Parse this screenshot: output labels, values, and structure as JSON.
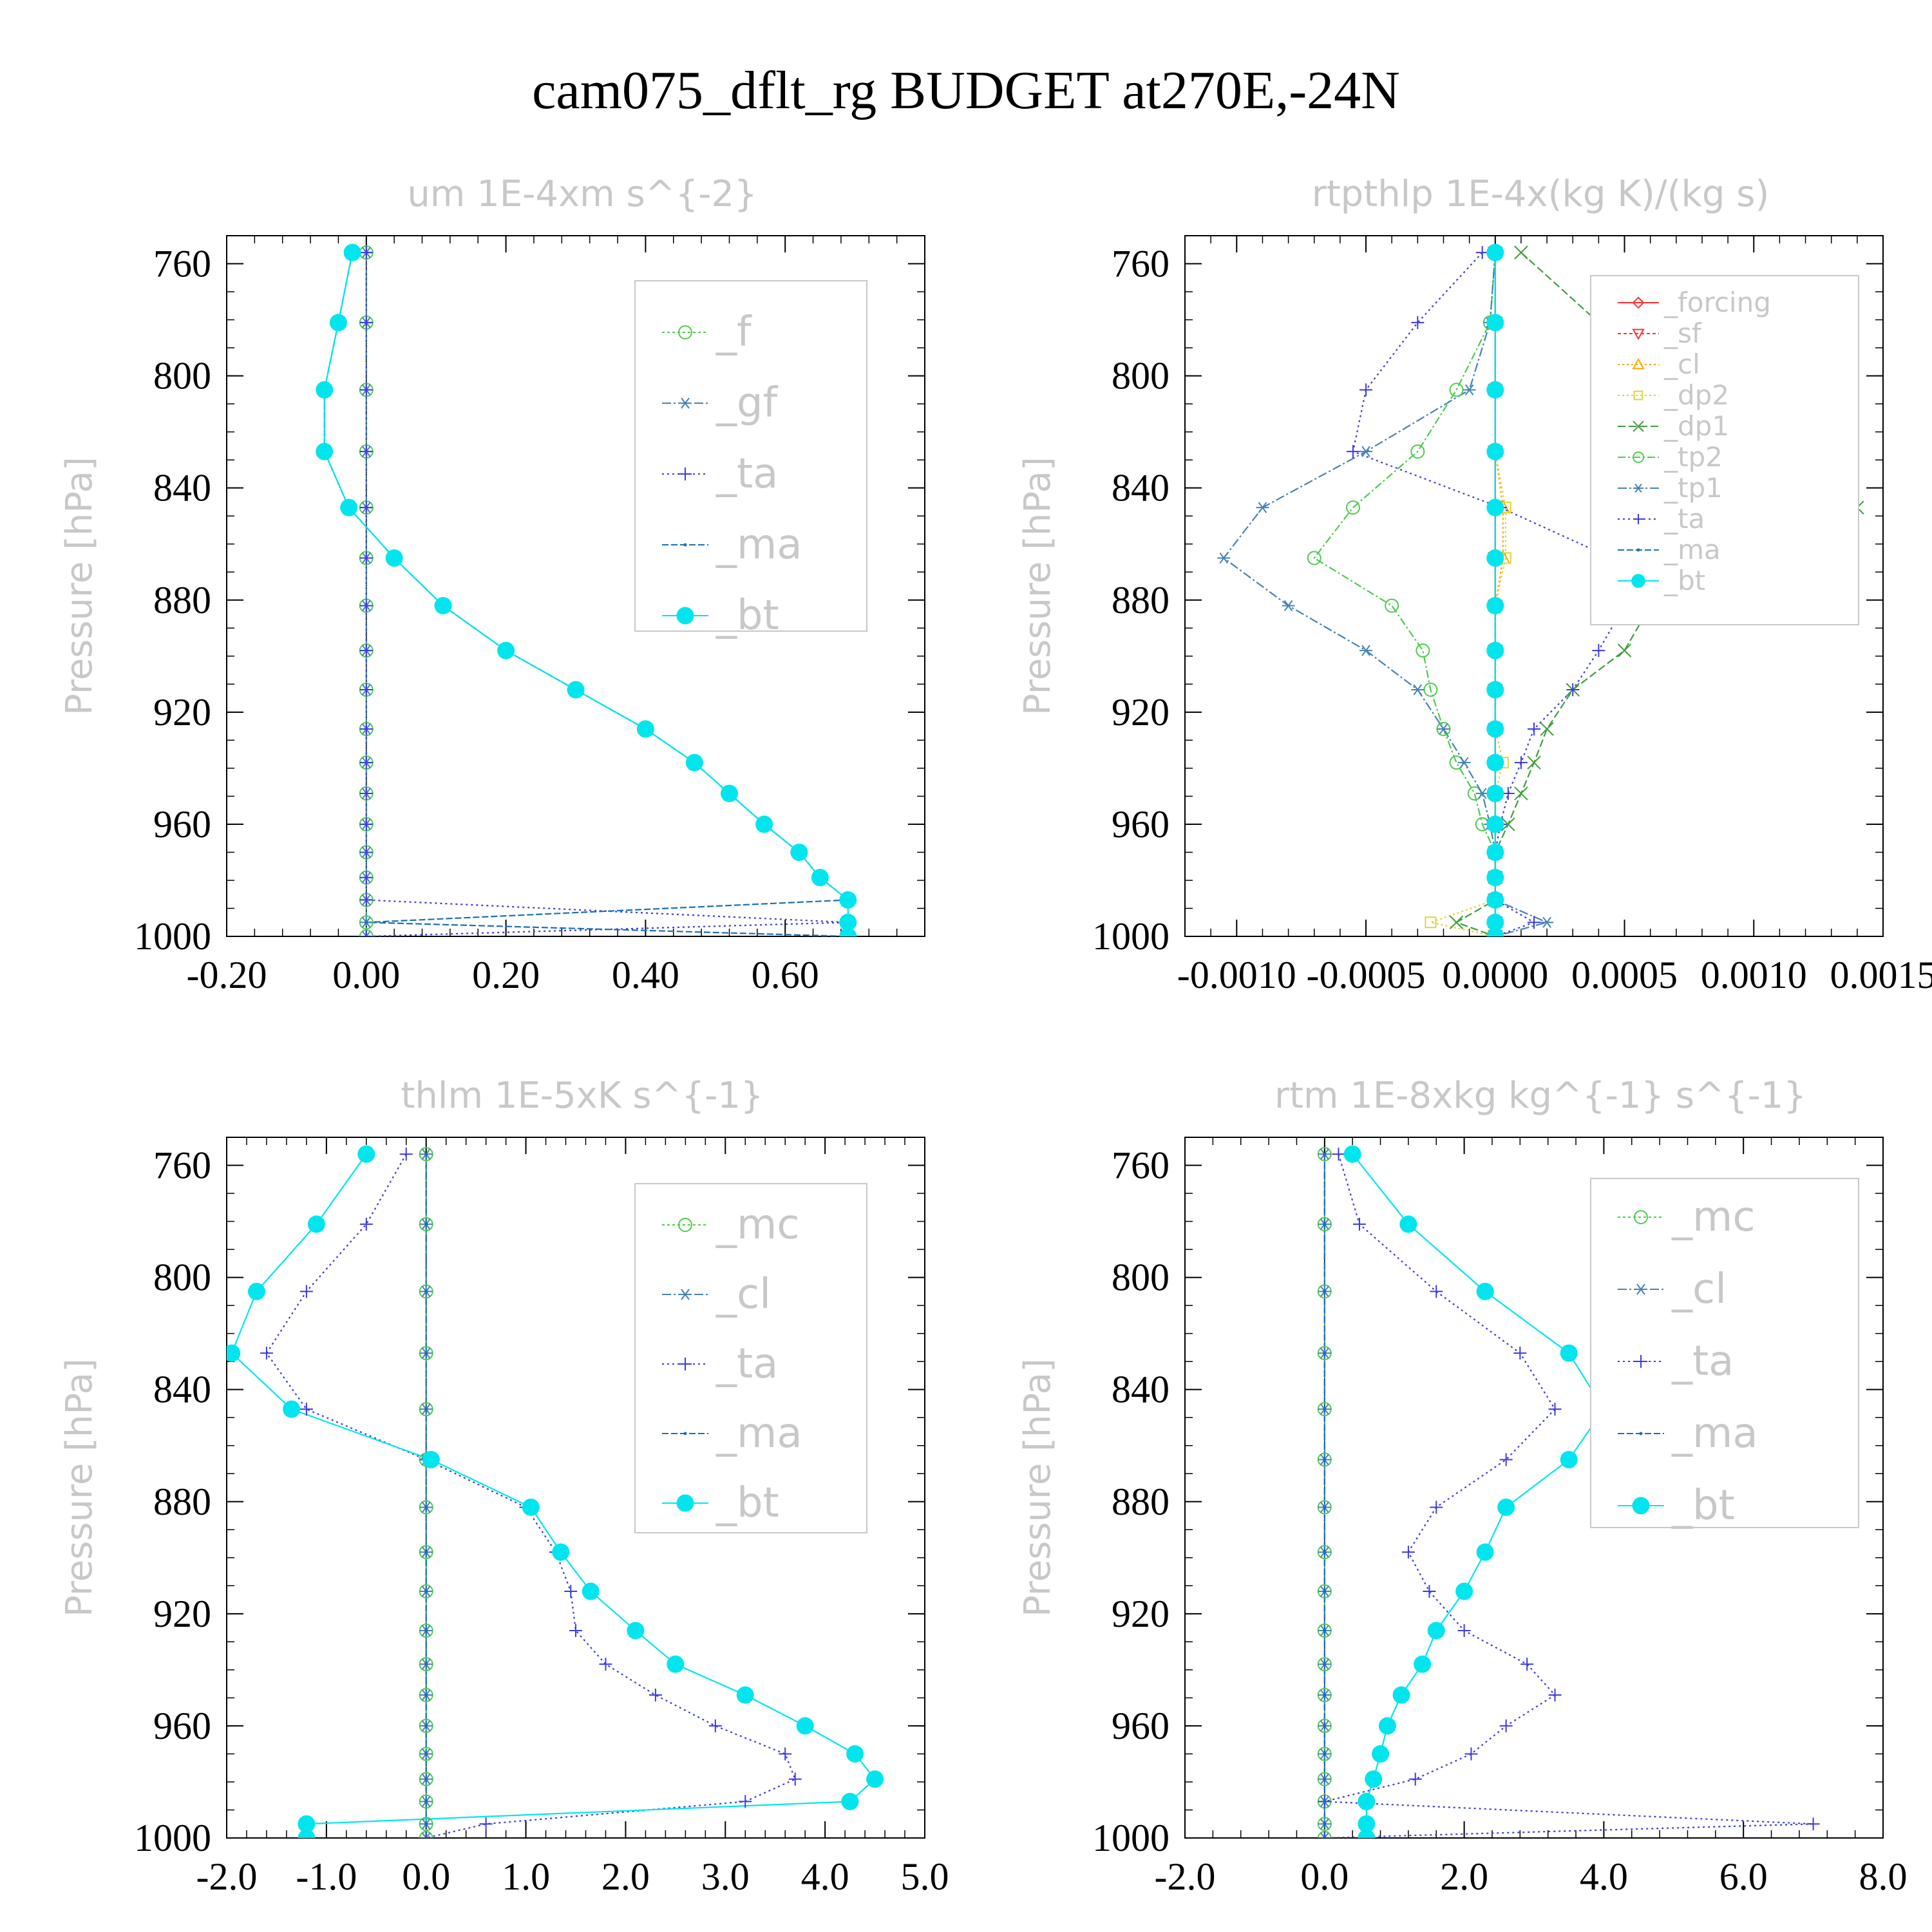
{
  "title": "cam075_dflt_rg  BUDGET at270E,-24N",
  "colors": {
    "green": "#4ccd4c",
    "steel": "#4682b4",
    "blue": "#3a3ae6",
    "cyan": "#00e5ee",
    "red": "#ff3030",
    "orange": "#ffa500",
    "yellow": "#e6d23c",
    "olive": "#3e9e3e",
    "gray_text": "#c8c8c8",
    "axis": "#000000"
  },
  "chart_data": [
    {
      "type": "line",
      "title": "um  1E-4xm s^{-2}",
      "ylabel": "Pressure [hPa]",
      "xlim": [
        -0.2,
        0.8
      ],
      "ylim": [
        1000,
        750
      ],
      "xticks": [
        -0.2,
        0,
        0.2,
        0.4,
        0.6
      ],
      "xticklabels": [
        "-0.20",
        "0.00",
        "0.20",
        "0.40",
        "0.60"
      ],
      "yticks": [
        760,
        800,
        840,
        880,
        920,
        960,
        1000
      ],
      "yticklabels": [
        "760",
        "800",
        "840",
        "880",
        "920",
        "960",
        "1000"
      ],
      "pressure": [
        756,
        781,
        805,
        827,
        847,
        865,
        882,
        898,
        912,
        926,
        938,
        949,
        960,
        970,
        979,
        987,
        995,
        1000
      ],
      "legend_placement": "top-right",
      "series": [
        {
          "name": "_f",
          "marker": "circle-open",
          "color": "#4ccd4c",
          "dash": "4,4",
          "values": [
            0,
            0,
            0,
            0,
            0,
            0,
            0,
            0,
            0,
            0,
            0,
            0,
            0,
            0,
            0,
            0,
            0,
            0
          ]
        },
        {
          "name": "_gf",
          "marker": "asterisk",
          "color": "#4682b4",
          "dash": "14,4,3,4",
          "values": [
            0,
            0,
            0,
            0,
            0,
            0,
            0,
            0,
            0,
            0,
            0,
            0,
            0,
            0,
            0,
            0,
            0,
            0
          ]
        },
        {
          "name": "_ta",
          "marker": "plus",
          "color": "#3a3ae6",
          "dash": "3,5",
          "values": [
            0,
            0,
            0,
            0,
            0,
            0,
            0,
            0,
            0,
            0,
            0,
            0,
            0,
            0,
            0,
            0,
            0.69,
            0
          ]
        },
        {
          "name": "_ma",
          "marker": "dot",
          "color": "#1a6fb4",
          "dash": "10,4",
          "values": [
            -0.02,
            -0.04,
            -0.06,
            -0.06,
            -0.025,
            0.04,
            0.11,
            0.2,
            0.3,
            0.4,
            0.47,
            0.52,
            0.57,
            0.62,
            0.65,
            0.69,
            0,
            0.69
          ]
        },
        {
          "name": "_bt",
          "marker": "filled-circle",
          "color": "#00e5ee",
          "dash": "",
          "values": [
            -0.02,
            -0.04,
            -0.06,
            -0.06,
            -0.025,
            0.04,
            0.11,
            0.2,
            0.3,
            0.4,
            0.47,
            0.52,
            0.57,
            0.62,
            0.65,
            0.69,
            0.69,
            0.69
          ]
        }
      ]
    },
    {
      "type": "line",
      "title": "rtpthlp  1E-4x(kg K)/(kg s)",
      "ylabel": "Pressure [hPa]",
      "xlim": [
        -0.0012,
        0.0015
      ],
      "ylim": [
        1000,
        750
      ],
      "xticks": [
        -0.001,
        -0.0005,
        0,
        0.0005,
        0.001,
        0.0015
      ],
      "xticklabels": [
        "-0.0010",
        "-0.0005",
        "0.0000",
        "0.0005",
        "0.0010",
        "0.0015"
      ],
      "yticks": [
        760,
        800,
        840,
        880,
        920,
        960,
        1000
      ],
      "yticklabels": [
        "760",
        "800",
        "840",
        "880",
        "920",
        "960",
        "1000"
      ],
      "pressure": [
        756,
        781,
        805,
        827,
        847,
        865,
        882,
        898,
        912,
        926,
        938,
        949,
        960,
        970,
        979,
        987,
        995,
        1000
      ],
      "legend_placement": "top-right",
      "series": [
        {
          "name": "_forcing",
          "marker": "diamond",
          "color": "#ff3030",
          "dash": "",
          "values": [
            0,
            0,
            0,
            0,
            0,
            0,
            0,
            0,
            0,
            0,
            0,
            0,
            0,
            0,
            0,
            0,
            0,
            0
          ]
        },
        {
          "name": "_sf",
          "marker": "triangle-down",
          "color": "#ff3030",
          "dash": "5,4",
          "values": [
            0,
            0,
            0,
            0,
            0,
            0,
            0,
            0,
            0,
            0,
            0,
            0,
            0,
            0,
            0,
            0,
            0,
            0
          ]
        },
        {
          "name": "_cl",
          "marker": "triangle",
          "color": "#ffa500",
          "dash": "3,4",
          "values": [
            0,
            0,
            0,
            0,
            3e-05,
            3e-05,
            0,
            0,
            0,
            0,
            0,
            0,
            0,
            0,
            0,
            0,
            0,
            0
          ]
        },
        {
          "name": "_dp2",
          "marker": "square",
          "color": "#e6d23c",
          "dash": "3,4",
          "values": [
            0,
            0,
            0,
            0,
            4e-05,
            4e-05,
            0,
            0,
            0,
            0,
            3e-05,
            0,
            0,
            0,
            0,
            0,
            -0.00025,
            0
          ]
        },
        {
          "name": "_dp1",
          "marker": "cross",
          "color": "#3e9e3e",
          "dash": "12,5",
          "values": [
            0.0001,
            0.0004,
            0.0007,
            0.0012,
            0.0014,
            0.0011,
            0.0006,
            0.0005,
            0.0003,
            0.0002,
            0.00015,
            0.0001,
            5e-05,
            0,
            0,
            0,
            -0.00015,
            0
          ]
        },
        {
          "name": "_tp2",
          "marker": "circle-open",
          "color": "#4ccd4c",
          "dash": "12,4,3,4",
          "values": [
            0,
            -2e-05,
            -0.00015,
            -0.0003,
            -0.00055,
            -0.0007,
            -0.0004,
            -0.00028,
            -0.00025,
            -0.0002,
            -0.00015,
            -8e-05,
            -5e-05,
            0,
            0,
            0,
            0,
            0
          ]
        },
        {
          "name": "_tp1",
          "marker": "asterisk",
          "color": "#4682b4",
          "dash": "14,4,3,4",
          "values": [
            0,
            -2e-05,
            -0.0001,
            -0.0005,
            -0.0009,
            -0.00105,
            -0.0008,
            -0.0005,
            -0.0003,
            -0.0002,
            -0.00012,
            -5e-05,
            -2e-05,
            0,
            0,
            0,
            0.0002,
            0
          ]
        },
        {
          "name": "_ta",
          "marker": "plus",
          "color": "#3a3ae6",
          "dash": "3,5",
          "values": [
            -5e-05,
            -0.0003,
            -0.0005,
            -0.00055,
            2e-05,
            0.00045,
            0.0005,
            0.0004,
            0.0003,
            0.00015,
            0.0001,
            5e-05,
            2e-05,
            0,
            0,
            0,
            0.00015,
            0
          ]
        },
        {
          "name": "_ma",
          "marker": "dot",
          "color": "#1a6fb4",
          "dash": "10,4",
          "values": [
            0,
            0,
            0,
            0,
            0,
            0,
            0,
            0,
            0,
            0,
            0,
            0,
            0,
            0,
            0,
            0,
            0,
            0
          ]
        },
        {
          "name": "_bt",
          "marker": "filled-circle",
          "color": "#00e5ee",
          "dash": "",
          "values": [
            0,
            0,
            0,
            0,
            0,
            0,
            0,
            0,
            0,
            0,
            0,
            0,
            0,
            0,
            0,
            0,
            0,
            0
          ]
        }
      ]
    },
    {
      "type": "line",
      "title": "thlm  1E-5xK s^{-1}",
      "ylabel": "Pressure [hPa]",
      "xlim": [
        -2,
        5
      ],
      "ylim": [
        1000,
        750
      ],
      "xticks": [
        -2,
        -1,
        0,
        1,
        2,
        3,
        4,
        5
      ],
      "xticklabels": [
        "-2.0",
        "-1.0",
        "0.0",
        "1.0",
        "2.0",
        "3.0",
        "4.0",
        "5.0"
      ],
      "yticks": [
        760,
        800,
        840,
        880,
        920,
        960,
        1000
      ],
      "yticklabels": [
        "760",
        "800",
        "840",
        "880",
        "920",
        "960",
        "1000"
      ],
      "pressure": [
        756,
        781,
        805,
        827,
        847,
        865,
        882,
        898,
        912,
        926,
        938,
        949,
        960,
        970,
        979,
        987,
        995,
        1000
      ],
      "legend_placement": "top-right",
      "series": [
        {
          "name": "_mc",
          "marker": "circle-open",
          "color": "#4ccd4c",
          "dash": "4,4",
          "values": [
            0,
            0,
            0,
            0,
            0,
            0,
            0,
            0,
            0,
            0,
            0,
            0,
            0,
            0,
            0,
            0,
            0,
            0
          ]
        },
        {
          "name": "_cl",
          "marker": "asterisk",
          "color": "#4682b4",
          "dash": "14,4,3,4",
          "values": [
            0,
            0,
            0,
            0,
            0,
            0,
            0,
            0,
            0,
            0,
            0,
            0,
            0,
            0,
            0,
            0,
            0,
            0
          ]
        },
        {
          "name": "_ta",
          "marker": "plus",
          "color": "#3a3ae6",
          "dash": "3,5",
          "values": [
            -0.2,
            -0.6,
            -1.2,
            -1.6,
            -1.2,
            0,
            1,
            1.3,
            1.45,
            1.5,
            1.8,
            2.3,
            2.9,
            3.6,
            3.7,
            3.2,
            0.6,
            0
          ]
        },
        {
          "name": "_ma",
          "marker": "dot",
          "color": "#1a6fb4",
          "dash": "10,4",
          "values": [
            0,
            0,
            0,
            0,
            0,
            0,
            0,
            0,
            0,
            0,
            0,
            0,
            0,
            0,
            0,
            0,
            0,
            0
          ]
        },
        {
          "name": "_bt",
          "marker": "filled-circle",
          "color": "#00e5ee",
          "dash": "",
          "values": [
            -0.6,
            -1.1,
            -1.7,
            -1.95,
            -1.35,
            0.05,
            1.05,
            1.35,
            1.65,
            2.1,
            2.5,
            3.2,
            3.8,
            4.3,
            4.5,
            4.25,
            -1.2,
            -1.2
          ]
        }
      ]
    },
    {
      "type": "line",
      "title": "rtm  1E-8xkg kg^{-1} s^{-1}",
      "ylabel": "Pressure [hPa]",
      "xlim": [
        -2,
        8
      ],
      "ylim": [
        1000,
        750
      ],
      "xticks": [
        -2,
        0,
        2,
        4,
        6,
        8
      ],
      "xticklabels": [
        "-2.0",
        "0.0",
        "2.0",
        "4.0",
        "6.0",
        "8.0"
      ],
      "yticks": [
        760,
        800,
        840,
        880,
        920,
        960,
        1000
      ],
      "yticklabels": [
        "760",
        "800",
        "840",
        "880",
        "920",
        "960",
        "1000"
      ],
      "pressure": [
        756,
        781,
        805,
        827,
        847,
        865,
        882,
        898,
        912,
        926,
        938,
        949,
        960,
        970,
        979,
        987,
        995,
        1000
      ],
      "legend_placement": "top-right",
      "series": [
        {
          "name": "_mc",
          "marker": "circle-open",
          "color": "#4ccd4c",
          "dash": "4,4",
          "values": [
            0,
            0,
            0,
            0,
            0,
            0,
            0,
            0,
            0,
            0,
            0,
            0,
            0,
            0,
            0,
            0,
            0,
            0
          ]
        },
        {
          "name": "_cl",
          "marker": "asterisk",
          "color": "#4682b4",
          "dash": "14,4,3,4",
          "values": [
            0,
            0,
            0,
            0,
            0,
            0,
            0,
            0,
            0,
            0,
            0,
            0,
            0,
            0,
            0,
            0,
            0,
            0
          ]
        },
        {
          "name": "_ta",
          "marker": "plus",
          "color": "#3a3ae6",
          "dash": "3,5",
          "values": [
            0.2,
            0.5,
            1.6,
            2.8,
            3.3,
            2.6,
            1.6,
            1.2,
            1.5,
            2,
            2.9,
            3.3,
            2.6,
            2.1,
            1.3,
            0,
            7,
            0
          ]
        },
        {
          "name": "_ma",
          "marker": "dot",
          "color": "#1a6fb4",
          "dash": "10,4",
          "values": [
            0,
            0,
            0,
            0,
            0,
            0,
            0,
            0,
            0,
            0,
            0,
            0,
            0,
            0,
            0,
            0,
            0,
            0
          ]
        },
        {
          "name": "_bt",
          "marker": "filled-circle",
          "color": "#00e5ee",
          "dash": "",
          "values": [
            0.4,
            1.2,
            2.3,
            3.5,
            4.0,
            3.5,
            2.6,
            2.3,
            2.0,
            1.6,
            1.4,
            1.1,
            0.9,
            0.8,
            0.7,
            0.6,
            0.6,
            0.6
          ]
        }
      ]
    }
  ]
}
